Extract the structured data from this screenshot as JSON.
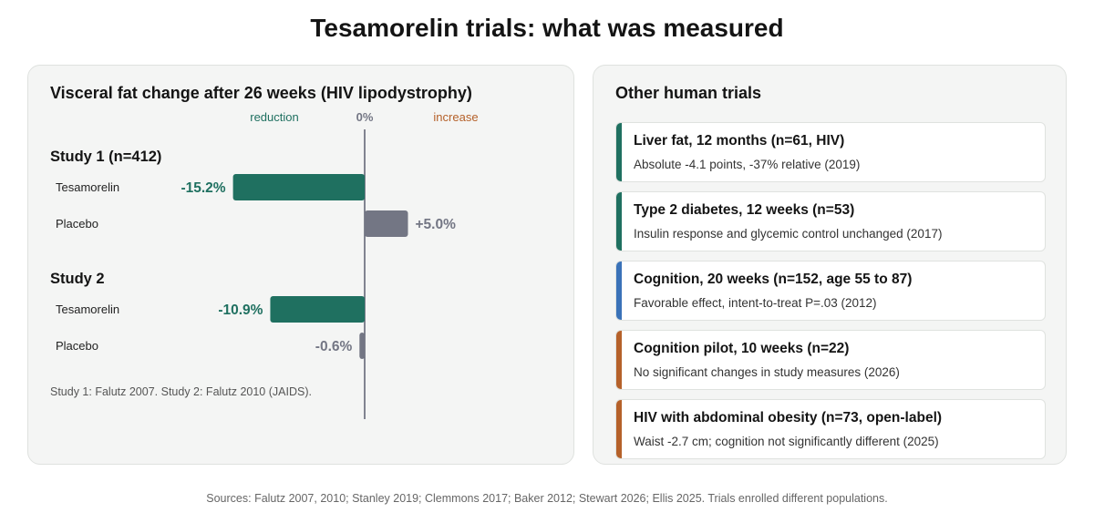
{
  "title": "Tesamorelin trials: what was measured",
  "left_panel": {
    "heading": "Visceral fat change after 26 weeks (HIV lipodystrophy)",
    "footnote": "Study 1: Falutz 2007. Study 2: Falutz 2010 (JAIDS)."
  },
  "chart_data": {
    "type": "bar",
    "orientation": "horizontal",
    "title": "Visceral fat change after 26 weeks (HIV lipodystrophy)",
    "axis_labels": {
      "negative": "reduction",
      "zero": "0%",
      "positive": "increase"
    },
    "groups": [
      {
        "name": "Study 1 (n=412)",
        "bars": [
          {
            "label": "Tesamorelin",
            "value": -15.2,
            "value_label": "-15.2%",
            "kind": "tesamorelin"
          },
          {
            "label": "Placebo",
            "value": 5.0,
            "value_label": "+5.0%",
            "kind": "placebo"
          }
        ]
      },
      {
        "name": "Study 2",
        "bars": [
          {
            "label": "Tesamorelin",
            "value": -10.9,
            "value_label": "-10.9%",
            "kind": "tesamorelin"
          },
          {
            "label": "Placebo",
            "value": -0.6,
            "value_label": "-0.6%",
            "kind": "placebo"
          }
        ]
      }
    ],
    "colors": {
      "tesamorelin": "#1f7060",
      "placebo": "#737684",
      "reduction_label": "#1f7060",
      "increase_label": "#b5612a",
      "zero_label": "#737684",
      "axis": "#5b5f6e"
    }
  },
  "right_panel": {
    "heading": "Other human trials",
    "cards": [
      {
        "title": "Liver fat, 12 months (n=61, HIV)",
        "desc": "Absolute -4.1 points, -37% relative (2019)",
        "accent": "#1f7060"
      },
      {
        "title": "Type 2 diabetes, 12 weeks (n=53)",
        "desc": "Insulin response and glycemic control unchanged (2017)",
        "accent": "#1f7060"
      },
      {
        "title": "Cognition, 20 weeks (n=152, age 55 to 87)",
        "desc": "Favorable effect, intent-to-treat P=.03 (2012)",
        "accent": "#3a72b8"
      },
      {
        "title": "Cognition pilot, 10 weeks (n=22)",
        "desc": "No significant changes in study measures (2026)",
        "accent": "#b5612a"
      },
      {
        "title": "HIV with abdominal obesity (n=73, open-label)",
        "desc": "Waist -2.7 cm; cognition not significantly different (2025)",
        "accent": "#b5612a"
      }
    ]
  },
  "sources": "Sources: Falutz 2007, 2010; Stanley 2019; Clemmons 2017; Baker 2012; Stewart 2026; Ellis 2025. Trials enrolled different populations."
}
